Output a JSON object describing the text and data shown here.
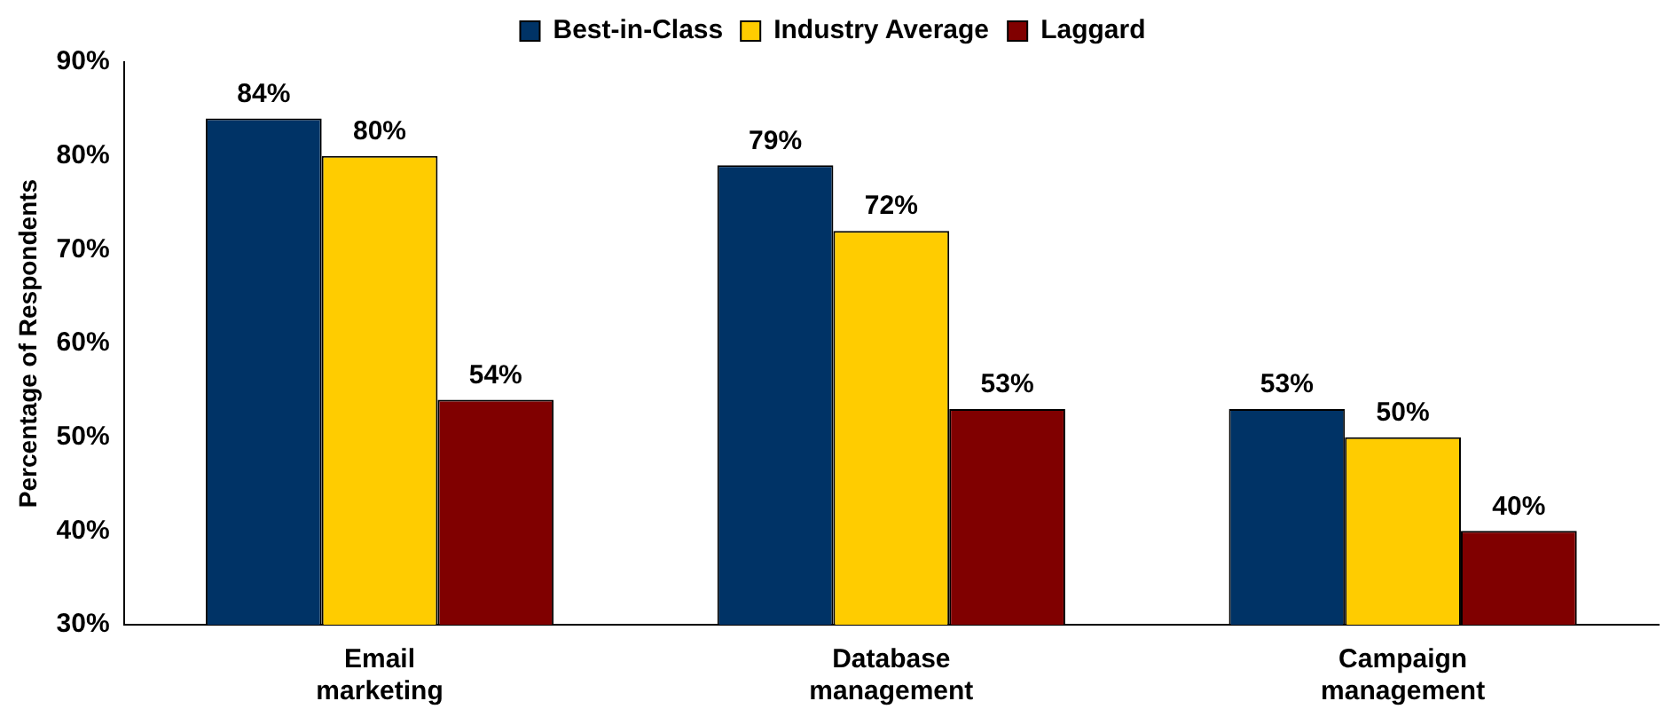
{
  "chart_data": {
    "type": "bar",
    "ylabel": "Percentage of Respondents",
    "categories": [
      "Email marketing",
      "Database management",
      "Campaign management"
    ],
    "series": [
      {
        "name": "Best-in-Class",
        "color": "#003366",
        "values": [
          84,
          79,
          53
        ],
        "value_labels": [
          "84%",
          "79%",
          "53%"
        ]
      },
      {
        "name": "Industry Average",
        "color": "#ffcc00",
        "values": [
          80,
          72,
          50
        ],
        "value_labels": [
          "80%",
          "72%",
          "50%"
        ]
      },
      {
        "name": "Laggard",
        "color": "#800000",
        "values": [
          54,
          53,
          40
        ],
        "value_labels": [
          "54%",
          "53%",
          "40%"
        ]
      }
    ],
    "ylim": [
      30,
      90
    ],
    "yticks": [
      {
        "value": 30,
        "label": "30%"
      },
      {
        "value": 40,
        "label": "40%"
      },
      {
        "value": 50,
        "label": "50%"
      },
      {
        "value": 60,
        "label": "60%"
      },
      {
        "value": 70,
        "label": "70%"
      },
      {
        "value": 80,
        "label": "80%"
      },
      {
        "value": 90,
        "label": "90%"
      }
    ],
    "grid": false,
    "legend": "top",
    "marker": "square"
  }
}
